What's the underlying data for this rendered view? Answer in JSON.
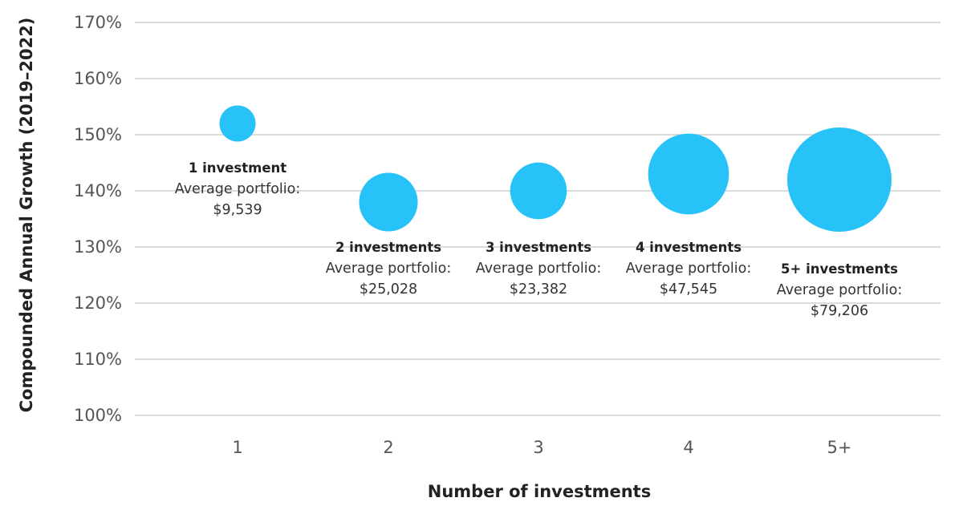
{
  "chart_data": {
    "type": "scatter",
    "xlabel": "Number of investments",
    "ylabel": "Compounded Annual Growth (2019–2022)",
    "ylim": [
      100,
      170
    ],
    "yticks": [
      "100%",
      "110%",
      "120%",
      "130%",
      "140%",
      "150%",
      "160%",
      "170%"
    ],
    "ytick_values": [
      100,
      110,
      120,
      130,
      140,
      150,
      160,
      170
    ],
    "categories": [
      "1",
      "2",
      "3",
      "4",
      "5+"
    ],
    "grid": true,
    "bubble_color": "#27C3F8",
    "points": [
      {
        "x": "1",
        "y": 152,
        "size": 9539,
        "title": "1 investment",
        "line1": "Average portfolio:",
        "line2": "$9,539"
      },
      {
        "x": "2",
        "y": 138,
        "size": 25028,
        "title": "2 investments",
        "line1": "Average portfolio:",
        "line2": "$25,028"
      },
      {
        "x": "3",
        "y": 140,
        "size": 23382,
        "title": "3 investments",
        "line1": "Average portfolio:",
        "line2": "$23,382"
      },
      {
        "x": "4",
        "y": 143,
        "size": 47545,
        "title": "4 investments",
        "line1": "Average portfolio:",
        "line2": "$47,545"
      },
      {
        "x": "5+",
        "y": 142,
        "size": 79206,
        "title": "5+ investments",
        "line1": "Average portfolio:",
        "line2": "$79,206"
      }
    ]
  }
}
